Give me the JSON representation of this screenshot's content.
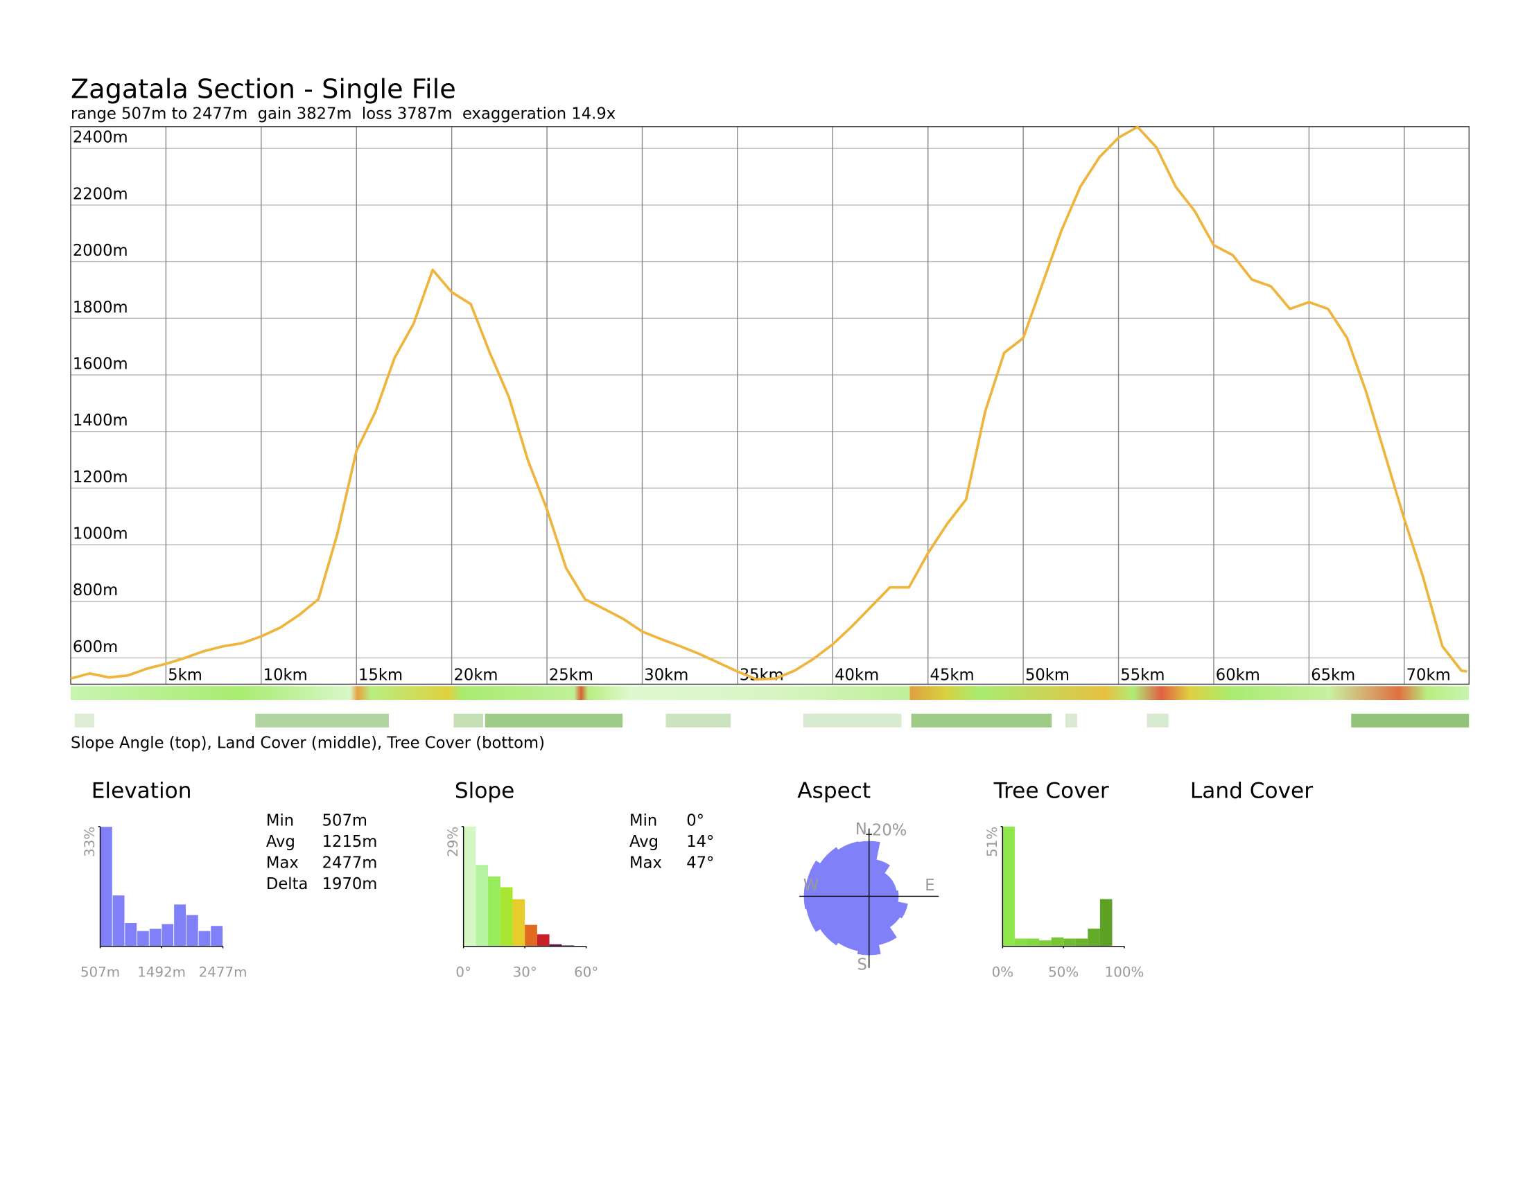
{
  "chart_data": [
    {
      "type": "line",
      "title": "Zagatala Section - Single File",
      "subtitle": "range 507m to 2477m  gain 3827m  loss 3787m  exaggeration 14.9x",
      "caption": "Slope Angle (top), Land Cover (middle), Tree Cover (bottom)",
      "x": [
        0,
        1,
        2,
        3,
        4,
        5,
        6,
        7,
        8,
        9,
        10,
        11,
        12,
        13,
        14,
        15,
        16,
        17,
        18,
        19,
        20,
        21,
        22,
        23,
        24,
        25,
        26,
        27,
        28,
        29,
        30,
        31,
        32,
        33,
        34,
        35,
        36,
        37,
        38,
        39,
        40,
        41,
        42,
        43,
        44,
        45,
        46,
        47,
        48,
        49,
        50,
        51,
        52,
        53,
        54,
        55,
        56,
        57,
        58,
        59,
        60,
        61,
        62,
        63,
        64,
        65,
        66,
        67,
        68,
        69,
        70,
        71,
        72,
        73,
        73.3
      ],
      "values": [
        527,
        545,
        531,
        538,
        562,
        579,
        600,
        624,
        641,
        652,
        676,
        707,
        752,
        807,
        1039,
        1332,
        1470,
        1660,
        1781,
        1971,
        1892,
        1850,
        1678,
        1522,
        1298,
        1125,
        918,
        807,
        773,
        738,
        693,
        666,
        641,
        614,
        583,
        552,
        524,
        527,
        555,
        597,
        648,
        711,
        780,
        849,
        849,
        970,
        1073,
        1160,
        1470,
        1678,
        1730,
        1920,
        2109,
        2265,
        2369,
        2438,
        2476,
        2403,
        2265,
        2179,
        2058,
        2023,
        1937,
        1913,
        1833,
        1857,
        1833,
        1730,
        1540,
        1316,
        1091,
        883,
        641,
        555,
        552
      ],
      "color": "#efb43c",
      "xlim": [
        0,
        73.4
      ],
      "ylim": [
        507,
        2477
      ],
      "xticks": [
        {
          "value": 5,
          "label": "5km"
        },
        {
          "value": 10,
          "label": "10km"
        },
        {
          "value": 15,
          "label": "15km"
        },
        {
          "value": 20,
          "label": "20km"
        },
        {
          "value": 25,
          "label": "25km"
        },
        {
          "value": 30,
          "label": "30km"
        },
        {
          "value": 35,
          "label": "35km"
        },
        {
          "value": 40,
          "label": "40km"
        },
        {
          "value": 45,
          "label": "45km"
        },
        {
          "value": 50,
          "label": "50km"
        },
        {
          "value": 55,
          "label": "55km"
        },
        {
          "value": 60,
          "label": "60km"
        },
        {
          "value": 65,
          "label": "65km"
        },
        {
          "value": 70,
          "label": "70km"
        }
      ],
      "yticks": [
        {
          "value": 600,
          "label": "600m"
        },
        {
          "value": 800,
          "label": "800m"
        },
        {
          "value": 1000,
          "label": "1000m"
        },
        {
          "value": 1200,
          "label": "1200m"
        },
        {
          "value": 1400,
          "label": "1400m"
        },
        {
          "value": 1600,
          "label": "1600m"
        },
        {
          "value": 1800,
          "label": "1800m"
        },
        {
          "value": 2000,
          "label": "2000m"
        },
        {
          "value": 2200,
          "label": "2200m"
        },
        {
          "value": 2400,
          "label": "2400m"
        }
      ],
      "grid": true
    },
    {
      "type": "histogram",
      "title": "Elevation",
      "bins": [
        507,
        704,
        901,
        1098,
        1295,
        1492,
        1689,
        1886,
        2083,
        2280,
        2477
      ],
      "values": [
        33,
        14.1,
        6.5,
        4.3,
        4.9,
        6.2,
        11.6,
        8.7,
        4.3,
        5.7
      ],
      "color": "#8080f8",
      "xlim": [
        507,
        2477
      ],
      "xticks": [
        {
          "value": 507,
          "label": "507m"
        },
        {
          "value": 1492,
          "label": "1492m"
        },
        {
          "value": 2477,
          "label": "2477m"
        }
      ],
      "ylim": [
        0,
        33
      ],
      "yticks": [
        {
          "value": 33,
          "label": "33%"
        }
      ],
      "stats": {
        "labels": [
          "Min",
          "Avg",
          "Max",
          "Delta"
        ],
        "values": [
          "507m",
          "1215m",
          "2477m",
          "1970m"
        ]
      }
    },
    {
      "type": "histogram",
      "title": "Slope",
      "bins": [
        0,
        6,
        12,
        18,
        24,
        30,
        36,
        42,
        48,
        54,
        60
      ],
      "values": [
        29,
        19.7,
        16.9,
        14.3,
        11.4,
        5.2,
        2.9,
        0.5,
        0.2,
        0
      ],
      "colors": [
        "#d4f7c4",
        "#b6f3a0",
        "#96ec5a",
        "#a8e632",
        "#e8cc2c",
        "#e06a20",
        "#c8202a",
        "#6a1060",
        "#301060",
        "#301060"
      ],
      "xlim": [
        0,
        60
      ],
      "xticks": [
        {
          "value": 0,
          "label": "0°"
        },
        {
          "value": 30,
          "label": "30°"
        },
        {
          "value": 60,
          "label": "60°"
        }
      ],
      "ylim": [
        0,
        29
      ],
      "yticks": [
        {
          "value": 29,
          "label": "29%"
        }
      ],
      "stats": {
        "labels": [
          "Min",
          "Avg",
          "Max"
        ],
        "values": [
          "0°",
          "14°",
          "47°"
        ]
      }
    },
    {
      "type": "polar",
      "title": "Aspect",
      "categories": [
        "N",
        null,
        null,
        null,
        "E",
        null,
        null,
        null,
        "S",
        null,
        null,
        null,
        "W",
        null,
        null,
        null
      ],
      "values": [
        17.8,
        12,
        9,
        9,
        9.5,
        12.7,
        12,
        16,
        19,
        18,
        19,
        20.6,
        21,
        20.6,
        19,
        18
      ],
      "color": "#8080f8",
      "rlim": [
        0,
        20
      ],
      "rticks": [
        {
          "value": 20,
          "label": "20%"
        }
      ]
    },
    {
      "type": "histogram",
      "title": "Tree Cover",
      "bins": [
        0,
        10,
        20,
        30,
        40,
        50,
        60,
        70,
        80,
        90,
        100
      ],
      "values": [
        51,
        3.3,
        3.3,
        2.5,
        3.8,
        3.3,
        3.3,
        7.5,
        20.1,
        0
      ],
      "colors": [
        "#8ee84a",
        "#88e044",
        "#82d83f",
        "#7ccf3a",
        "#76c635",
        "#70bd31",
        "#6ab42d",
        "#64ab29",
        "#5ea225",
        "#589a22"
      ],
      "xlim": [
        0,
        100
      ],
      "xticks": [
        {
          "value": 0,
          "label": "0%"
        },
        {
          "value": 50,
          "label": "50%"
        },
        {
          "value": 100,
          "label": "100%"
        }
      ],
      "ylim": [
        0,
        51
      ],
      "yticks": [
        {
          "value": 51,
          "label": "51%"
        }
      ]
    }
  ],
  "land_cover": {
    "title": "Land Cover"
  }
}
